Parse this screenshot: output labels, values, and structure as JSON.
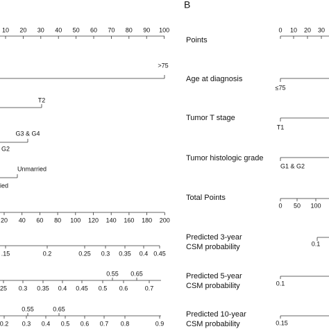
{
  "panel_a": {
    "points_ticks": [
      "10",
      "20",
      "30",
      "40",
      "50",
      "60",
      "70",
      "80",
      "90",
      "100"
    ],
    "age_label": ">75",
    "t_stage_label": "T2",
    "grade_labels": [
      "G3 & G4",
      "G2"
    ],
    "marital_labels": [
      "Unmarried",
      "ied"
    ],
    "total_points_ticks": [
      "20",
      "40",
      "60",
      "80",
      "100",
      "120",
      "140",
      "160",
      "180",
      "200"
    ],
    "prob3_ticks": [
      ".15",
      "0.2",
      "0.25",
      "0.3",
      "0.35",
      "0.4",
      "0.45"
    ],
    "prob5_ticks": [
      "25",
      "0.3",
      "0.35",
      "0.4",
      "0.45",
      "0.5",
      "0.6",
      "0.7"
    ],
    "prob5_upper": [
      "0.55",
      "0.65"
    ],
    "prob10_ticks": [
      "0.2",
      "0.3",
      "0.4",
      "0.5",
      "0.6",
      "0.7",
      "0.8",
      "0.9"
    ],
    "prob10_upper": [
      "0.55",
      "0.65"
    ]
  },
  "panel_b": {
    "letter": "B",
    "row_labels": [
      "Points",
      "Age at diagnosis",
      "Tumor T stage",
      "Tumor histologic grade",
      "Total Points"
    ],
    "prob_labels": [
      [
        "Predicted 3-year",
        "CSM probability"
      ],
      [
        "Predicted 5-year",
        "CSM probability"
      ],
      [
        "Predicted 10-year",
        "CSM probability"
      ]
    ],
    "points_ticks": [
      "0",
      "10",
      "20",
      "30"
    ],
    "age_label": "≤75",
    "t_stage_label": "T1",
    "grade_label": "G1 & G2",
    "total_points_ticks": [
      "0",
      "50",
      "100"
    ],
    "prob3_tick": "0.1",
    "prob5_tick": "0.1",
    "prob10_tick": "0.15"
  }
}
